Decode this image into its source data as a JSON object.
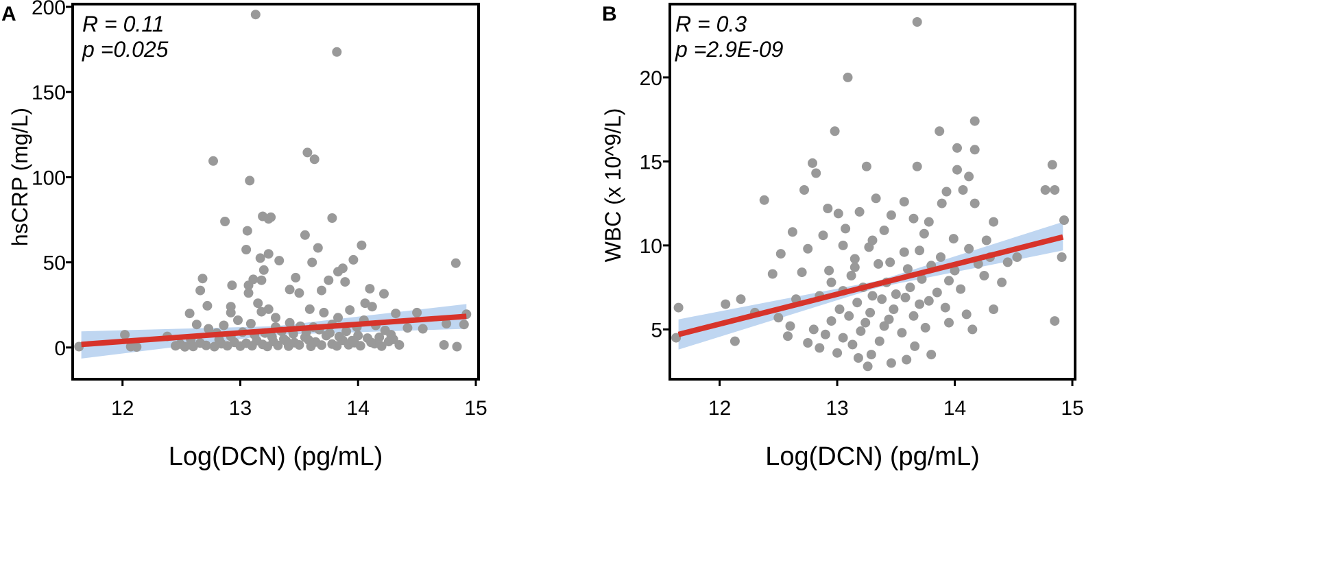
{
  "colors": {
    "point": "#999999",
    "fit_line": "#d7332a",
    "ci_band": "#aac8ec",
    "axis": "#000000"
  },
  "chart_data": [
    {
      "type": "scatter",
      "panel_label": "A",
      "stat_r": "R = 0.11",
      "stat_p": "p =0.025",
      "xlabel": "Log(DCN) (pg/mL)",
      "ylabel": "hsCRP (mg/L)",
      "xlim": [
        11.6,
        15.0
      ],
      "ylim": [
        -17,
        200
      ],
      "x_ticks": [
        12,
        13,
        14,
        15
      ],
      "y_ticks": [
        0,
        50,
        100,
        150,
        200
      ],
      "regression": {
        "x": [
          11.65,
          14.92
        ],
        "y": [
          1.8,
          18.3
        ]
      },
      "ci_band": {
        "x": [
          11.65,
          13.3,
          14.92
        ],
        "lower": [
          -6.5,
          7.5,
          11.0
        ],
        "upper": [
          9.5,
          12.5,
          25.5
        ]
      },
      "points": [
        [
          13.13,
          195.5
        ],
        [
          13.82,
          173.5
        ],
        [
          12.77,
          109.5
        ],
        [
          13.57,
          114.5
        ],
        [
          13.63,
          110.5
        ],
        [
          13.08,
          98.0
        ],
        [
          12.87,
          74.0
        ],
        [
          13.26,
          76.5
        ],
        [
          13.19,
          77.0
        ],
        [
          13.78,
          76.0
        ],
        [
          13.24,
          75.5
        ],
        [
          13.06,
          68.5
        ],
        [
          13.55,
          66.0
        ],
        [
          13.66,
          58.5
        ],
        [
          14.03,
          60.0
        ],
        [
          13.24,
          55.0
        ],
        [
          13.05,
          57.5
        ],
        [
          13.17,
          52.5
        ],
        [
          13.33,
          51.0
        ],
        [
          13.61,
          50.0
        ],
        [
          13.96,
          51.5
        ],
        [
          14.83,
          49.5
        ],
        [
          13.2,
          45.5
        ],
        [
          13.87,
          46.5
        ],
        [
          13.83,
          44.5
        ],
        [
          13.11,
          40.0
        ],
        [
          13.07,
          36.5
        ],
        [
          12.68,
          40.5
        ],
        [
          12.93,
          36.5
        ],
        [
          13.18,
          39.5
        ],
        [
          13.47,
          41.0
        ],
        [
          13.75,
          39.5
        ],
        [
          12.66,
          33.5
        ],
        [
          13.07,
          32.0
        ],
        [
          13.42,
          34.0
        ],
        [
          13.89,
          38.5
        ],
        [
          14.1,
          34.5
        ],
        [
          12.72,
          24.5
        ],
        [
          12.92,
          24.0
        ],
        [
          13.15,
          26.0
        ],
        [
          13.24,
          22.5
        ],
        [
          13.5,
          32.0
        ],
        [
          13.69,
          33.5
        ],
        [
          14.22,
          31.5
        ],
        [
          12.57,
          20.0
        ],
        [
          12.92,
          20.5
        ],
        [
          13.18,
          21.0
        ],
        [
          13.3,
          17.5
        ],
        [
          13.59,
          22.5
        ],
        [
          13.71,
          20.5
        ],
        [
          13.83,
          17.5
        ],
        [
          13.93,
          22.0
        ],
        [
          14.06,
          26.0
        ],
        [
          14.12,
          24.0
        ],
        [
          14.32,
          20.0
        ],
        [
          14.5,
          20.5
        ],
        [
          12.02,
          7.5
        ],
        [
          12.07,
          0.5
        ],
        [
          12.38,
          6.5
        ],
        [
          12.49,
          2.0
        ],
        [
          12.58,
          4.5
        ],
        [
          12.63,
          13.5
        ],
        [
          12.73,
          11.0
        ],
        [
          12.8,
          8.5
        ],
        [
          12.86,
          13.0
        ],
        [
          12.98,
          16.0
        ],
        [
          13.09,
          14.0
        ],
        [
          13.3,
          12.0
        ],
        [
          13.42,
          14.5
        ],
        [
          13.51,
          12.5
        ],
        [
          13.78,
          13.5
        ],
        [
          13.99,
          12.0
        ],
        [
          14.05,
          16.0
        ],
        [
          14.15,
          13.0
        ],
        [
          14.23,
          10.0
        ],
        [
          14.28,
          7.5
        ],
        [
          14.42,
          11.5
        ],
        [
          14.55,
          11.0
        ],
        [
          14.75,
          14.0
        ],
        [
          14.9,
          13.5
        ],
        [
          14.92,
          19.5
        ],
        [
          14.73,
          1.5
        ],
        [
          14.84,
          0.5
        ],
        [
          11.63,
          0.5
        ],
        [
          12.12,
          0.3
        ],
        [
          12.45,
          1.0
        ],
        [
          12.6,
          0.6
        ],
        [
          12.71,
          1.2
        ],
        [
          12.78,
          0.5
        ],
        [
          12.84,
          2.2
        ],
        [
          12.89,
          1.0
        ],
        [
          12.95,
          3.0
        ],
        [
          13.0,
          0.8
        ],
        [
          13.05,
          2.5
        ],
        [
          13.1,
          1.0
        ],
        [
          13.14,
          4.0
        ],
        [
          13.19,
          1.8
        ],
        [
          13.23,
          0.6
        ],
        [
          13.28,
          3.5
        ],
        [
          13.32,
          1.2
        ],
        [
          13.37,
          5.0
        ],
        [
          13.41,
          0.8
        ],
        [
          13.46,
          2.8
        ],
        [
          13.5,
          1.5
        ],
        [
          13.55,
          6.0
        ],
        [
          13.6,
          0.7
        ],
        [
          13.64,
          3.2
        ],
        [
          13.69,
          1.4
        ],
        [
          13.73,
          7.0
        ],
        [
          13.78,
          2.0
        ],
        [
          13.82,
          0.9
        ],
        [
          13.87,
          4.2
        ],
        [
          13.92,
          1.6
        ],
        [
          13.97,
          2.8
        ],
        [
          14.02,
          1.0
        ],
        [
          14.08,
          5.5
        ],
        [
          14.14,
          2.2
        ],
        [
          14.2,
          0.8
        ],
        [
          14.26,
          3.5
        ],
        [
          14.35,
          1.5
        ],
        [
          12.92,
          6.5
        ],
        [
          13.02,
          9.0
        ],
        [
          13.12,
          7.5
        ],
        [
          13.21,
          8.5
        ],
        [
          13.35,
          9.5
        ],
        [
          13.45,
          8.0
        ],
        [
          13.56,
          9.0
        ],
        [
          13.67,
          10.5
        ],
        [
          13.76,
          8.5
        ],
        [
          13.9,
          9.5
        ],
        [
          14.0,
          7.0
        ],
        [
          14.18,
          6.0
        ],
        [
          12.53,
          0.4
        ],
        [
          12.66,
          2.6
        ],
        [
          12.82,
          4.6
        ],
        [
          13.27,
          6.2
        ],
        [
          13.39,
          3.8
        ],
        [
          13.58,
          4.4
        ],
        [
          13.84,
          6.4
        ],
        [
          14.11,
          3.0
        ],
        [
          14.3,
          4.8
        ],
        [
          13.44,
          10.5
        ],
        [
          13.62,
          12.0
        ],
        [
          13.95,
          4.0
        ]
      ]
    },
    {
      "type": "scatter",
      "panel_label": "B",
      "stat_r": "R = 0.3",
      "stat_p": "p =2.9E-09",
      "xlabel": "Log(DCN) (pg/mL)",
      "ylabel": "WBC (x 10^9/L)",
      "xlim": [
        11.6,
        15.0
      ],
      "ylim": [
        2.2,
        24.2
      ],
      "x_ticks": [
        12,
        13,
        14,
        15
      ],
      "y_ticks": [
        5,
        10,
        15,
        20
      ],
      "regression": {
        "x": [
          11.65,
          14.92
        ],
        "y": [
          4.7,
          10.5
        ]
      },
      "ci_band": {
        "x": [
          11.65,
          13.35,
          14.92
        ],
        "lower": [
          3.8,
          7.5,
          9.7
        ],
        "upper": [
          5.6,
          7.9,
          11.4
        ]
      },
      "points": [
        [
          13.68,
          23.3
        ],
        [
          13.09,
          20.0
        ],
        [
          12.98,
          16.8
        ],
        [
          13.87,
          16.8
        ],
        [
          14.17,
          17.4
        ],
        [
          14.02,
          15.8
        ],
        [
          14.17,
          15.7
        ],
        [
          14.83,
          14.8
        ],
        [
          12.79,
          14.9
        ],
        [
          12.82,
          14.3
        ],
        [
          13.25,
          14.7
        ],
        [
          13.68,
          14.7
        ],
        [
          14.02,
          14.5
        ],
        [
          14.12,
          14.1
        ],
        [
          14.07,
          13.3
        ],
        [
          12.72,
          13.3
        ],
        [
          13.93,
          13.2
        ],
        [
          14.77,
          13.3
        ],
        [
          14.85,
          13.3
        ],
        [
          12.38,
          12.7
        ],
        [
          12.92,
          12.2
        ],
        [
          13.33,
          12.8
        ],
        [
          13.57,
          12.6
        ],
        [
          13.89,
          12.5
        ],
        [
          14.17,
          12.5
        ],
        [
          13.01,
          11.9
        ],
        [
          13.19,
          12.0
        ],
        [
          13.46,
          11.8
        ],
        [
          13.65,
          11.6
        ],
        [
          13.78,
          11.4
        ],
        [
          14.33,
          11.4
        ],
        [
          14.93,
          11.5
        ],
        [
          12.62,
          10.8
        ],
        [
          12.88,
          10.6
        ],
        [
          13.07,
          11.0
        ],
        [
          13.4,
          10.9
        ],
        [
          13.74,
          10.7
        ],
        [
          13.99,
          10.4
        ],
        [
          14.27,
          10.3
        ],
        [
          12.52,
          9.5
        ],
        [
          12.75,
          9.8
        ],
        [
          13.05,
          10.0
        ],
        [
          13.27,
          9.9
        ],
        [
          13.57,
          9.6
        ],
        [
          13.88,
          9.3
        ],
        [
          14.3,
          9.3
        ],
        [
          14.53,
          9.3
        ],
        [
          14.91,
          9.3
        ],
        [
          12.18,
          6.8
        ],
        [
          12.45,
          8.3
        ],
        [
          12.7,
          8.4
        ],
        [
          12.93,
          8.5
        ],
        [
          13.15,
          8.7
        ],
        [
          13.35,
          8.9
        ],
        [
          13.6,
          8.6
        ],
        [
          13.8,
          8.8
        ],
        [
          14.0,
          8.5
        ],
        [
          14.25,
          8.2
        ],
        [
          14.4,
          7.8
        ],
        [
          11.65,
          6.3
        ],
        [
          12.05,
          6.5
        ],
        [
          12.3,
          6.0
        ],
        [
          12.5,
          5.7
        ],
        [
          12.65,
          6.8
        ],
        [
          12.85,
          7.0
        ],
        [
          13.05,
          7.3
        ],
        [
          13.22,
          7.5
        ],
        [
          13.42,
          7.8
        ],
        [
          13.62,
          7.5
        ],
        [
          13.85,
          7.2
        ],
        [
          14.05,
          7.4
        ],
        [
          14.33,
          6.2
        ],
        [
          11.63,
          4.5
        ],
        [
          12.13,
          4.3
        ],
        [
          12.58,
          4.6
        ],
        [
          12.8,
          5.0
        ],
        [
          12.95,
          5.5
        ],
        [
          13.1,
          5.8
        ],
        [
          13.28,
          6.0
        ],
        [
          13.48,
          6.2
        ],
        [
          13.7,
          6.5
        ],
        [
          13.92,
          6.3
        ],
        [
          14.1,
          5.9
        ],
        [
          14.85,
          5.5
        ],
        [
          12.75,
          4.2
        ],
        [
          12.9,
          4.7
        ],
        [
          13.05,
          4.5
        ],
        [
          13.2,
          4.9
        ],
        [
          13.4,
          5.2
        ],
        [
          13.55,
          4.8
        ],
        [
          13.75,
          5.1
        ],
        [
          13.95,
          5.4
        ],
        [
          14.15,
          5.0
        ],
        [
          13.0,
          3.6
        ],
        [
          13.18,
          3.3
        ],
        [
          13.29,
          3.5
        ],
        [
          13.46,
          3.0
        ],
        [
          13.59,
          3.2
        ],
        [
          13.8,
          3.5
        ],
        [
          13.26,
          2.8
        ],
        [
          12.85,
          3.9
        ],
        [
          13.13,
          4.1
        ],
        [
          13.36,
          4.3
        ],
        [
          13.66,
          4.0
        ],
        [
          12.95,
          7.8
        ],
        [
          13.12,
          8.2
        ],
        [
          13.3,
          7.0
        ],
        [
          13.5,
          7.1
        ],
        [
          13.72,
          8.0
        ],
        [
          13.95,
          7.9
        ],
        [
          14.2,
          8.9
        ],
        [
          14.45,
          9.0
        ],
        [
          13.17,
          6.6
        ],
        [
          13.38,
          6.8
        ],
        [
          13.58,
          6.9
        ],
        [
          13.78,
          6.7
        ],
        [
          13.02,
          6.2
        ],
        [
          13.24,
          5.4
        ],
        [
          13.44,
          5.6
        ],
        [
          13.65,
          5.8
        ],
        [
          12.6,
          5.2
        ],
        [
          13.15,
          9.2
        ],
        [
          13.45,
          9.0
        ],
        [
          13.7,
          9.7
        ],
        [
          14.12,
          9.8
        ],
        [
          13.3,
          10.3
        ]
      ]
    }
  ]
}
